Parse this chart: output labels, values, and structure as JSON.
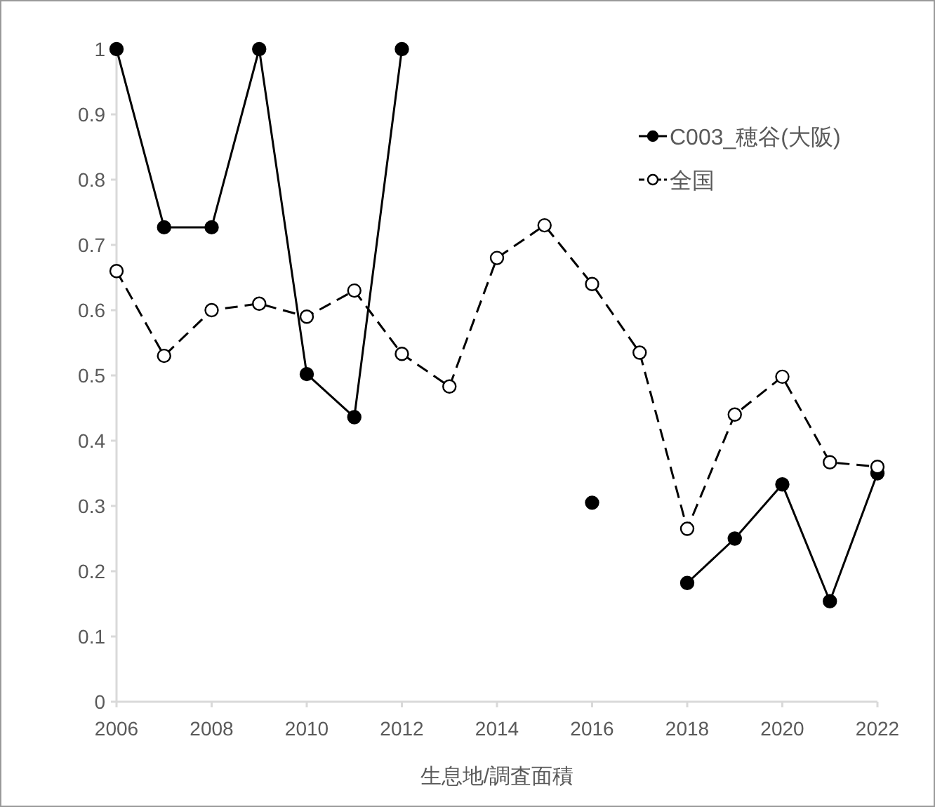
{
  "chart_data": {
    "type": "line",
    "x": [
      2006,
      2007,
      2008,
      2009,
      2010,
      2011,
      2012,
      2013,
      2014,
      2015,
      2016,
      2017,
      2018,
      2019,
      2020,
      2021,
      2022
    ],
    "series": [
      {
        "name": "C003_穂谷(大阪)",
        "color": "#000000",
        "line_style": "solid",
        "values": [
          1,
          0.727,
          0.727,
          1,
          0.502,
          0.436,
          1,
          null,
          null,
          null,
          0.305,
          null,
          0.182,
          0.25,
          0.333,
          0.154,
          0.35
        ]
      },
      {
        "name": "全国",
        "color": "#000000",
        "line_style": "dashed",
        "values": [
          0.66,
          0.53,
          0.6,
          0.61,
          0.59,
          0.63,
          0.533,
          0.483,
          0.68,
          0.73,
          0.64,
          0.535,
          0.265,
          0.44,
          0.498,
          0.367,
          0.36
        ]
      }
    ],
    "marker": "circle",
    "xlim": [
      2006,
      2022
    ],
    "xticks": [
      2006,
      2008,
      2010,
      2012,
      2014,
      2016,
      2018,
      2020,
      2022
    ],
    "ylim": [
      0,
      1
    ],
    "yticks": [
      0,
      0.1,
      0.2,
      0.3,
      0.4,
      0.5,
      0.6,
      0.7,
      0.8,
      0.9,
      1
    ],
    "xlabel": "生息地/調査面積",
    "legend": "top right",
    "grid": false
  }
}
